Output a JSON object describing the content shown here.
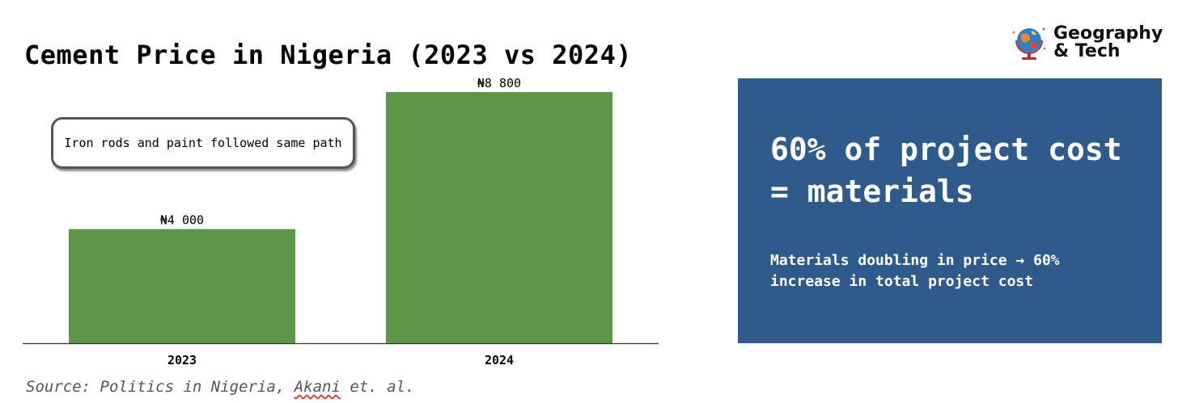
{
  "chart_data": {
    "type": "bar",
    "title": "Cement Price in Nigeria (2023 vs 2024)",
    "categories": [
      "2023",
      "2024"
    ],
    "values": [
      4000,
      8800
    ],
    "value_labels": [
      "₦4 000",
      "₦8 800"
    ],
    "ylim": [
      0,
      8800
    ],
    "grid": false,
    "bar_color": "#5e9648",
    "annotation": "Iron rods and paint followed same path"
  },
  "source": {
    "prefix": "Source: Politics in Nigeria, ",
    "misspelled": "Akani",
    "suffix": " et. al."
  },
  "logo": {
    "line1": "Geography",
    "line2": "& Tech",
    "icon": "globe-icon"
  },
  "info_box": {
    "headline": "60% of project cost = materials",
    "subtext": "Materials doubling in price → 60% increase in total project cost",
    "background": "#2e5a8c"
  }
}
